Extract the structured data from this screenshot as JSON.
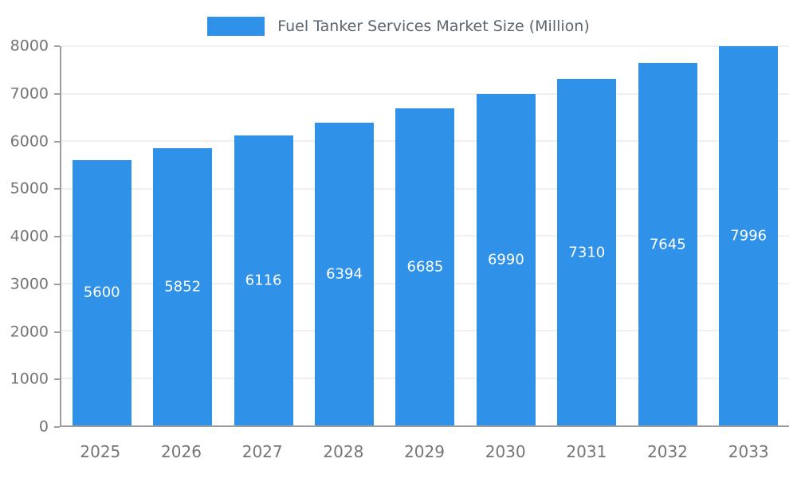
{
  "chart_data": {
    "type": "bar",
    "title": "Fuel Tanker Services Market Size (Million)",
    "categories": [
      "2025",
      "2026",
      "2027",
      "2028",
      "2029",
      "2030",
      "2031",
      "2032",
      "2033"
    ],
    "values": [
      5600,
      5852,
      6116,
      6394,
      6685,
      6990,
      7310,
      7645,
      7996
    ],
    "xlabel": "",
    "ylabel": "",
    "ylim": [
      0,
      8000
    ],
    "ytick_step": 1000,
    "grid": true,
    "legend_position": "top",
    "bar_color": "#2F92E8",
    "value_label_color": "#ffffff",
    "axis_text_color": "#757575",
    "legend_text_color": "#5a6570"
  }
}
